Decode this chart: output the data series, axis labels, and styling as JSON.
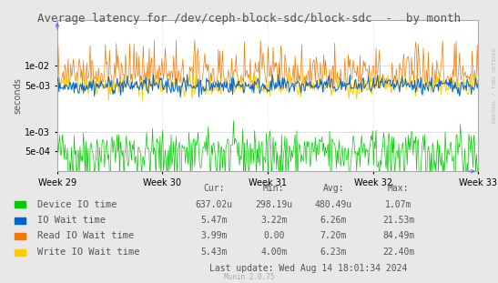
{
  "title": "Average latency for /dev/ceph-block-sdc/block-sdc  -  by month",
  "ylabel": "seconds",
  "background_color": "#e8e8e8",
  "plot_bg_color": "#ffffff",
  "grid_color": "#cccccc",
  "week_labels": [
    "Week 29",
    "Week 30",
    "Week 31",
    "Week 32",
    "Week 33"
  ],
  "legend": [
    {
      "label": "Device IO time",
      "color": "#00cc00"
    },
    {
      "label": "IO Wait time",
      "color": "#0066cc"
    },
    {
      "label": "Read IO Wait time",
      "color": "#f57900"
    },
    {
      "label": "Write IO Wait time",
      "color": "#ffcc00"
    }
  ],
  "table_headers": [
    "Cur:",
    "Min:",
    "Avg:",
    "Max:"
  ],
  "table_rows": [
    [
      "637.02u",
      "298.19u",
      "480.49u",
      "1.07m"
    ],
    [
      "5.47m",
      "3.22m",
      "6.26m",
      "21.53m"
    ],
    [
      "3.99m",
      "0.00",
      "7.20m",
      "84.49m"
    ],
    [
      "5.43m",
      "4.00m",
      "6.23m",
      "22.40m"
    ]
  ],
  "last_update": "Last update: Wed Aug 14 18:01:34 2024",
  "munin_label": "Munin 2.0.75",
  "rrdtool_label": "RRDTOOL / TOBI OETIKER",
  "n_points": 500,
  "seed": 42,
  "title_fontsize": 9,
  "axis_fontsize": 7,
  "legend_fontsize": 7.5,
  "table_fontsize": 7,
  "border_color": "#aaaaaa",
  "red_line_color": "#ffaaaa",
  "arrow_color": "#6666ff",
  "yticks": [
    "5e-04",
    "1e-03",
    "5e-03",
    "1e-02"
  ],
  "ytick_vals": [
    0.0005,
    0.001,
    0.005,
    0.01
  ],
  "ymin": 0.00025,
  "ymax": 0.05
}
